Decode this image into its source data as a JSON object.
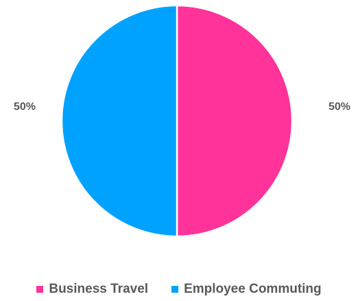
{
  "chart_data": {
    "type": "pie",
    "title": "",
    "categories": [
      "Business Travel",
      "Employee Commuting"
    ],
    "values": [
      50,
      50
    ],
    "data_labels": [
      "50%",
      "50%"
    ],
    "colors": [
      "#ff3399",
      "#00a2ff"
    ],
    "slice_border_color": "#ffffff",
    "legend_position": "bottom",
    "legend": [
      {
        "label": "Business Travel",
        "color": "#ff3399"
      },
      {
        "label": "Employee Commuting",
        "color": "#00a2ff"
      }
    ]
  }
}
